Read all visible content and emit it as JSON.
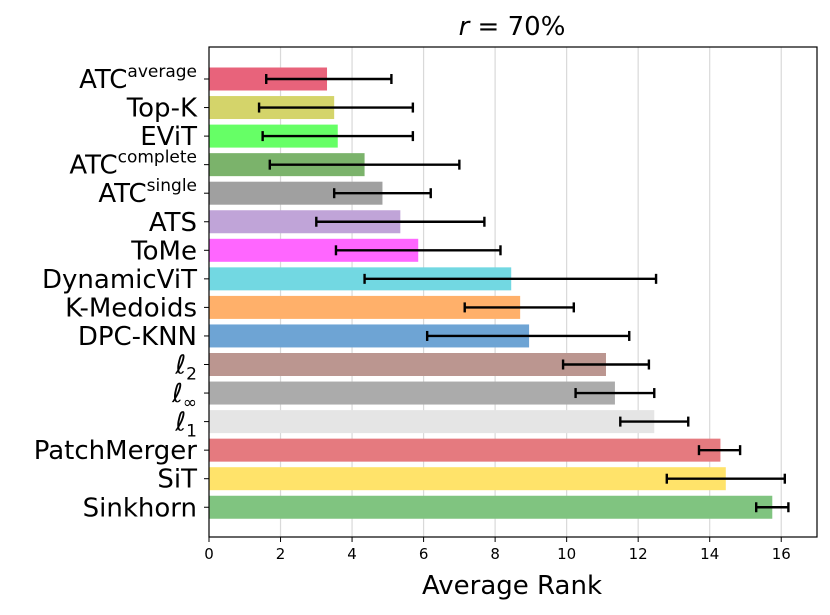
{
  "chart_data": {
    "type": "bar",
    "orientation": "horizontal",
    "title_prefix": "r",
    "title_rest": " = 70%",
    "title": "r = 70%",
    "xlabel": "Average Rank",
    "ylabel": "",
    "xlim": [
      0,
      17
    ],
    "xticks": [
      0,
      2,
      4,
      6,
      8,
      10,
      12,
      14,
      16
    ],
    "grid": "vertical",
    "categories": [
      {
        "base": "ATC",
        "sup": "average",
        "sub": "",
        "value": 3.3,
        "err_low": 1.6,
        "err_high": 5.1,
        "color": "#e8637b"
      },
      {
        "base": "Top-K",
        "sup": "",
        "sub": "",
        "value": 3.5,
        "err_low": 1.4,
        "err_high": 5.7,
        "color": "#d4d46a"
      },
      {
        "base": "EViT",
        "sup": "",
        "sub": "",
        "value": 3.6,
        "err_low": 1.5,
        "err_high": 5.7,
        "color": "#66ff66"
      },
      {
        "base": "ATC",
        "sup": "complete",
        "sub": "",
        "value": 4.35,
        "err_low": 1.7,
        "err_high": 7.0,
        "color": "#7bb36b"
      },
      {
        "base": "ATC",
        "sup": "single",
        "sub": "",
        "value": 4.85,
        "err_low": 3.5,
        "err_high": 6.2,
        "color": "#a0a0a0"
      },
      {
        "base": "ATS",
        "sup": "",
        "sub": "",
        "value": 5.35,
        "err_low": 3.0,
        "err_high": 7.7,
        "color": "#c0a4d8"
      },
      {
        "base": "ToMe",
        "sup": "",
        "sub": "",
        "value": 5.85,
        "err_low": 3.55,
        "err_high": 8.15,
        "color": "#ff66ff"
      },
      {
        "base": "DynamicViT",
        "sup": "",
        "sub": "",
        "value": 8.45,
        "err_low": 4.35,
        "err_high": 12.5,
        "color": "#72d8e2"
      },
      {
        "base": "K-Medoids",
        "sup": "",
        "sub": "",
        "value": 8.7,
        "err_low": 7.15,
        "err_high": 10.2,
        "color": "#ffb06a"
      },
      {
        "base": "DPC-KNN",
        "sup": "",
        "sub": "",
        "value": 8.95,
        "err_low": 6.1,
        "err_high": 11.75,
        "color": "#6ea4d4"
      },
      {
        "base": "ℓ",
        "sup": "",
        "sub": "2",
        "value": 11.1,
        "err_low": 9.9,
        "err_high": 12.3,
        "color": "#bb9690"
      },
      {
        "base": "ℓ",
        "sup": "",
        "sub": "∞",
        "value": 11.35,
        "err_low": 10.25,
        "err_high": 12.45,
        "color": "#ababab"
      },
      {
        "base": "ℓ",
        "sup": "",
        "sub": "1",
        "value": 12.45,
        "err_low": 11.5,
        "err_high": 13.4,
        "color": "#e5e5e5"
      },
      {
        "base": "PatchMerger",
        "sup": "",
        "sub": "",
        "value": 14.3,
        "err_low": 13.7,
        "err_high": 14.85,
        "color": "#e57a7f"
      },
      {
        "base": "SiT",
        "sup": "",
        "sub": "",
        "value": 14.45,
        "err_low": 12.8,
        "err_high": 16.1,
        "color": "#ffe36a"
      },
      {
        "base": "Sinkhorn",
        "sup": "",
        "sub": "",
        "value": 15.75,
        "err_low": 15.3,
        "err_high": 16.2,
        "color": "#80c480"
      }
    ]
  }
}
